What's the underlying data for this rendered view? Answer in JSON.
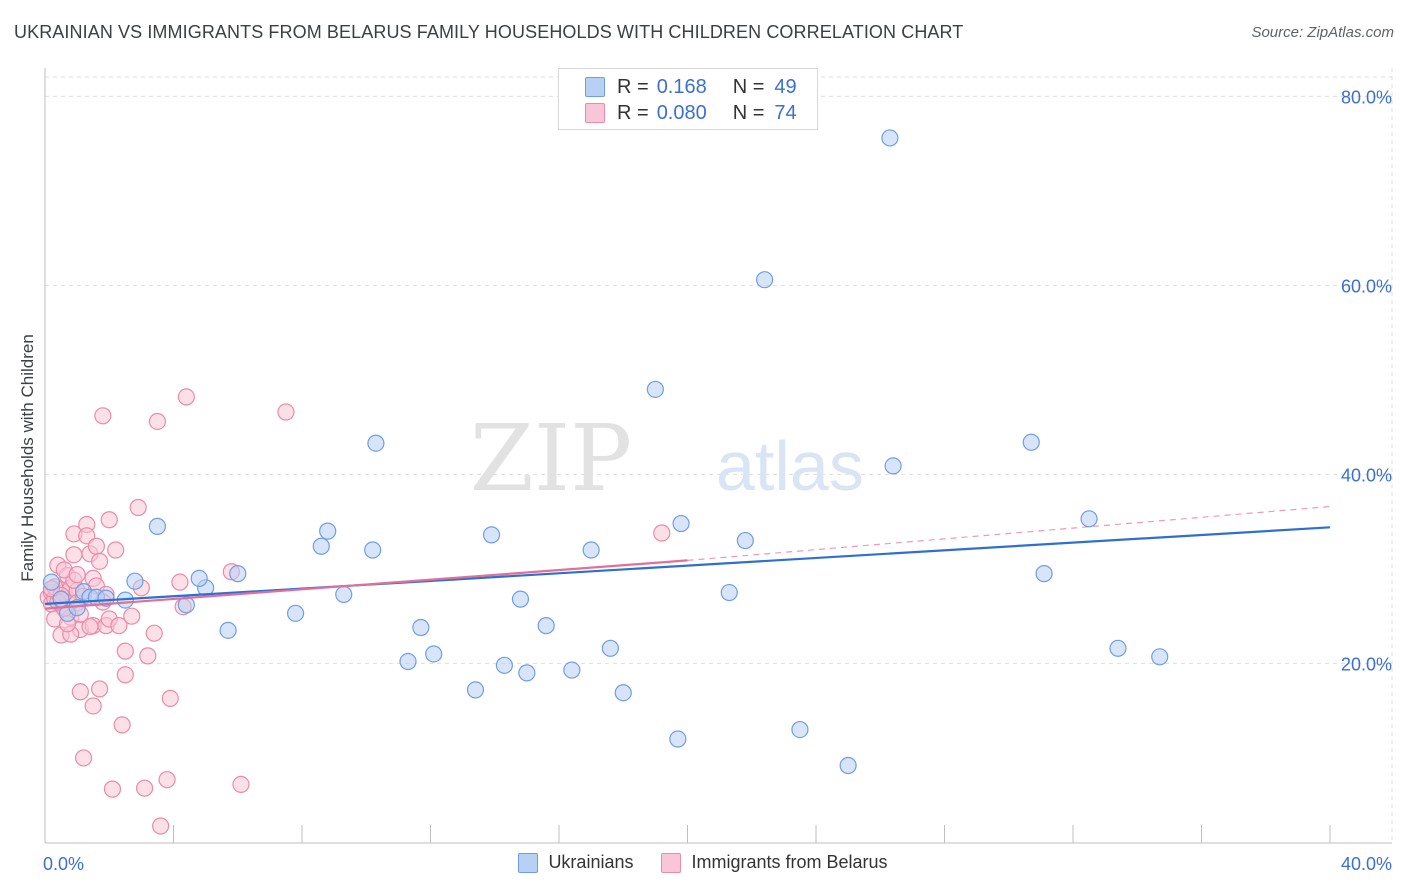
{
  "chart_title": "UKRAINIAN VS IMMIGRANTS FROM BELARUS FAMILY HOUSEHOLDS WITH CHILDREN CORRELATION CHART",
  "source": "Source: ZipAtlas.com",
  "watermark": {
    "zip": "ZIP",
    "atlas": "atlas"
  },
  "colors": {
    "blue_fill": "#b8d0f3",
    "blue_stroke": "#6f9ee6",
    "blue_line": "#2f6fd0",
    "pink_fill": "#f8c6d6",
    "pink_stroke": "#ec8aa9",
    "pink_line": "#e0709a",
    "tick_label": "#3b6fd4",
    "grid": "#dedede"
  },
  "legend": {
    "rows": [
      {
        "r_label": "R =",
        "r_value": "0.168",
        "n_label": "N =",
        "n_value": "49"
      },
      {
        "r_label": "R =",
        "r_value": "0.080",
        "n_label": "N =",
        "n_value": "74"
      }
    ]
  },
  "bottom_legend": {
    "series1": "Ukrainians",
    "series2": "Immigrants from Belarus"
  },
  "chart_data": {
    "type": "scatter",
    "title": "UKRAINIAN VS IMMIGRANTS FROM BELARUS FAMILY HOUSEHOLDS WITH CHILDREN CORRELATION CHART",
    "xlabel": "",
    "ylabel": "Family Households with Children",
    "xlim": [
      0,
      40
    ],
    "ylim": [
      1,
      83
    ],
    "x_tick_labels": [
      "0.0%",
      "40.0%"
    ],
    "y_ticks": [
      20,
      40,
      60,
      80
    ],
    "y_tick_labels": [
      "20.0%",
      "40.0%",
      "60.0%",
      "80.0%"
    ],
    "grid": true,
    "legend_position": "top-center",
    "series": [
      {
        "name": "Ukrainians",
        "r": 0.168,
        "n": 49,
        "trend": {
          "x0": 0,
          "y0": 26.3,
          "x1": 40,
          "y1": 34.4
        },
        "points": [
          [
            0.2,
            28.6
          ],
          [
            0.5,
            26.8
          ],
          [
            0.7,
            25.3
          ],
          [
            1.0,
            25.9
          ],
          [
            1.2,
            27.6
          ],
          [
            1.4,
            27.0
          ],
          [
            1.6,
            27.0
          ],
          [
            1.9,
            26.9
          ],
          [
            2.5,
            26.7
          ],
          [
            2.8,
            28.7
          ],
          [
            3.5,
            34.5
          ],
          [
            4.4,
            26.2
          ],
          [
            5.0,
            28.0
          ],
          [
            4.8,
            29.0
          ],
          [
            5.7,
            23.5
          ],
          [
            6.0,
            29.5
          ],
          [
            7.8,
            25.3
          ],
          [
            8.6,
            32.4
          ],
          [
            8.8,
            34.0
          ],
          [
            9.3,
            27.3
          ],
          [
            10.2,
            32.0
          ],
          [
            10.3,
            43.3
          ],
          [
            11.3,
            20.2
          ],
          [
            11.7,
            23.8
          ],
          [
            12.1,
            21.0
          ],
          [
            13.4,
            17.2
          ],
          [
            13.9,
            33.6
          ],
          [
            14.3,
            19.8
          ],
          [
            14.8,
            26.8
          ],
          [
            15.0,
            19.0
          ],
          [
            15.6,
            24.0
          ],
          [
            16.4,
            19.3
          ],
          [
            17.0,
            32.0
          ],
          [
            17.6,
            21.6
          ],
          [
            18.0,
            16.9
          ],
          [
            19.0,
            49.0
          ],
          [
            19.8,
            34.8
          ],
          [
            19.7,
            12.0
          ],
          [
            21.3,
            27.5
          ],
          [
            21.8,
            33.0
          ],
          [
            22.4,
            60.6
          ],
          [
            23.5,
            13.0
          ],
          [
            25.0,
            9.2
          ],
          [
            26.3,
            75.6
          ],
          [
            26.4,
            40.9
          ],
          [
            30.7,
            43.4
          ],
          [
            31.1,
            29.5
          ],
          [
            32.5,
            35.3
          ],
          [
            33.4,
            21.6
          ],
          [
            34.7,
            20.7
          ]
        ]
      },
      {
        "name": "Immigrants from Belarus",
        "r": 0.08,
        "n": 74,
        "trend": {
          "x0": 0,
          "y0": 25.8,
          "x1": 20,
          "y1": 30.9
        },
        "trend_extension": {
          "x0": 20,
          "y0": 30.9,
          "x1": 40,
          "y1": 36.6
        },
        "points": [
          [
            0.1,
            27.0
          ],
          [
            0.2,
            27.5
          ],
          [
            0.2,
            26.3
          ],
          [
            0.3,
            26.9
          ],
          [
            0.3,
            24.7
          ],
          [
            0.4,
            27.4
          ],
          [
            0.4,
            30.4
          ],
          [
            0.5,
            27.8
          ],
          [
            0.5,
            23.0
          ],
          [
            0.6,
            26.0
          ],
          [
            0.6,
            27.5
          ],
          [
            0.7,
            29.3
          ],
          [
            0.7,
            26.8
          ],
          [
            0.8,
            28.0
          ],
          [
            0.8,
            24.9
          ],
          [
            0.9,
            31.5
          ],
          [
            0.9,
            33.7
          ],
          [
            1.0,
            27.7
          ],
          [
            1.0,
            26.4
          ],
          [
            1.1,
            17.0
          ],
          [
            1.1,
            23.6
          ],
          [
            1.2,
            10.0
          ],
          [
            1.3,
            34.7
          ],
          [
            1.3,
            33.5
          ],
          [
            1.4,
            31.6
          ],
          [
            1.5,
            29.0
          ],
          [
            1.5,
            24.0
          ],
          [
            1.5,
            15.5
          ],
          [
            1.6,
            32.4
          ],
          [
            1.6,
            28.2
          ],
          [
            1.7,
            30.8
          ],
          [
            1.7,
            17.3
          ],
          [
            1.8,
            46.2
          ],
          [
            1.9,
            27.3
          ],
          [
            1.9,
            24.0
          ],
          [
            2.0,
            35.2
          ],
          [
            2.0,
            24.7
          ],
          [
            2.1,
            6.7
          ],
          [
            2.2,
            32.0
          ],
          [
            2.3,
            24.0
          ],
          [
            2.4,
            13.5
          ],
          [
            2.5,
            21.3
          ],
          [
            2.5,
            18.8
          ],
          [
            2.9,
            36.5
          ],
          [
            3.1,
            6.8
          ],
          [
            3.2,
            20.8
          ],
          [
            3.4,
            23.2
          ],
          [
            3.5,
            45.6
          ],
          [
            3.6,
            2.8
          ],
          [
            3.8,
            7.7
          ],
          [
            3.9,
            16.3
          ],
          [
            4.2,
            28.6
          ],
          [
            4.3,
            26.0
          ],
          [
            4.4,
            48.2
          ],
          [
            5.8,
            29.7
          ],
          [
            6.1,
            7.2
          ],
          [
            7.5,
            46.6
          ],
          [
            0.3,
            28.1
          ],
          [
            0.6,
            25.8
          ],
          [
            0.9,
            28.8
          ],
          [
            1.2,
            27.1
          ],
          [
            0.4,
            26.5
          ],
          [
            0.8,
            23.1
          ],
          [
            1.4,
            23.9
          ],
          [
            0.5,
            27.2
          ],
          [
            2.7,
            25.0
          ],
          [
            1.1,
            25.2
          ],
          [
            0.2,
            27.9
          ],
          [
            0.6,
            29.9
          ],
          [
            1.8,
            26.5
          ],
          [
            3.0,
            28.0
          ],
          [
            0.7,
            24.2
          ],
          [
            1.0,
            29.4
          ],
          [
            19.2,
            33.8
          ]
        ]
      }
    ]
  }
}
